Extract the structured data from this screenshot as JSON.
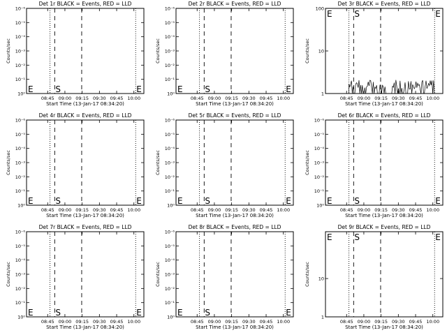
{
  "chart_data": [
    {
      "type": "line",
      "title": "Det 1r BLACK = Events, RED = LLD",
      "xlabel": "Start Time (13-Jan-17 08:34:20)",
      "ylabel": "Counts/sec",
      "scale": "log",
      "xticks": [
        "08:45",
        "09:00",
        "09:15",
        "09:30",
        "09:45",
        "10:00"
      ],
      "yticks": [
        "10⁰",
        "10⁻¹",
        "10⁻²",
        "10⁻³",
        "10⁻⁴",
        "10⁻⁵",
        "10⁻⁶"
      ],
      "markers": {
        "start": "S",
        "end": "E"
      },
      "x_marks": [
        {
          "x": 0.2,
          "style": "dotted"
        },
        {
          "x": 0.24,
          "style": "dashed"
        },
        {
          "x": 0.47,
          "style": "dashed"
        },
        {
          "x": 0.93,
          "style": "dotted"
        }
      ],
      "series": []
    },
    {
      "type": "line",
      "title": "Det 2r BLACK = Events, RED = LLD",
      "xlabel": "Start Time (13-Jan-17 08:34:20)",
      "ylabel": "Counts/sec",
      "scale": "log",
      "xticks": [
        "08:45",
        "09:00",
        "09:15",
        "09:30",
        "09:45",
        "10:00"
      ],
      "yticks": [
        "10⁰",
        "10⁻¹",
        "10⁻²",
        "10⁻³",
        "10⁻⁴",
        "10⁻⁵",
        "10⁻⁶"
      ],
      "markers": {
        "start": "S",
        "end": "E"
      },
      "x_marks": [
        {
          "x": 0.2,
          "style": "dotted"
        },
        {
          "x": 0.24,
          "style": "dashed"
        },
        {
          "x": 0.47,
          "style": "dashed"
        },
        {
          "x": 0.93,
          "style": "dotted"
        }
      ],
      "series": []
    },
    {
      "type": "line",
      "title": "Det 3r BLACK = Events, RED = LLD",
      "xlabel": "Start Time (13-Jan-17 08:34:20)",
      "ylabel": "Counts/sec",
      "scale": "log",
      "xticks": [
        "08:45",
        "09:00",
        "09:15",
        "09:30",
        "09:45",
        "10:00"
      ],
      "yticks": [
        "1",
        "10",
        "100"
      ],
      "markers": {
        "start": "S",
        "end": "E"
      },
      "x_marks": [
        {
          "x": 0.2,
          "style": "dotted"
        },
        {
          "x": 0.24,
          "style": "dashed"
        },
        {
          "x": 0.47,
          "style": "dashed"
        },
        {
          "x": 0.93,
          "style": "dotted"
        }
      ],
      "series": [
        {
          "color": "#000000",
          "x_range": [
            0.2,
            0.93
          ],
          "y_range": [
            1,
            2
          ]
        }
      ]
    },
    {
      "type": "line",
      "title": "Det 4r BLACK = Events, RED = LLD",
      "xlabel": "Start Time (13-Jan-17 08:34:20)",
      "ylabel": "Counts/sec",
      "scale": "log",
      "xticks": [
        "08:45",
        "09:00",
        "09:15",
        "09:30",
        "09:45",
        "10:00"
      ],
      "yticks": [
        "10⁰",
        "10⁻¹",
        "10⁻²",
        "10⁻³",
        "10⁻⁴",
        "10⁻⁵",
        "10⁻⁶"
      ],
      "markers": {
        "start": "S",
        "end": "E"
      },
      "x_marks": [
        {
          "x": 0.2,
          "style": "dotted"
        },
        {
          "x": 0.24,
          "style": "dashed"
        },
        {
          "x": 0.47,
          "style": "dashed"
        },
        {
          "x": 0.93,
          "style": "dotted"
        }
      ],
      "series": []
    },
    {
      "type": "line",
      "title": "Det 5r BLACK = Events, RED = LLD",
      "xlabel": "Start Time (13-Jan-17 08:34:20)",
      "ylabel": "Counts/sec",
      "scale": "log",
      "xticks": [
        "08:45",
        "09:00",
        "09:15",
        "09:30",
        "09:45",
        "10:00"
      ],
      "yticks": [
        "10⁰",
        "10⁻¹",
        "10⁻²",
        "10⁻³",
        "10⁻⁴",
        "10⁻⁵",
        "10⁻⁶"
      ],
      "markers": {
        "start": "S",
        "end": "E"
      },
      "x_marks": [
        {
          "x": 0.2,
          "style": "dotted"
        },
        {
          "x": 0.24,
          "style": "dashed"
        },
        {
          "x": 0.47,
          "style": "dashed"
        },
        {
          "x": 0.93,
          "style": "dotted"
        }
      ],
      "series": []
    },
    {
      "type": "line",
      "title": "Det 6r BLACK = Events, RED = LLD",
      "xlabel": "Start Time (13-Jan-17 08:34:20)",
      "ylabel": "Counts/sec",
      "scale": "log",
      "xticks": [
        "08:45",
        "09:00",
        "09:15",
        "09:30",
        "09:45",
        "10:00"
      ],
      "yticks": [
        "10⁰",
        "10⁻¹",
        "10⁻²",
        "10⁻³",
        "10⁻⁴",
        "10⁻⁵",
        "10⁻⁶"
      ],
      "markers": {
        "start": "S",
        "end": "E"
      },
      "x_marks": [
        {
          "x": 0.2,
          "style": "dotted"
        },
        {
          "x": 0.24,
          "style": "dashed"
        },
        {
          "x": 0.47,
          "style": "dashed"
        },
        {
          "x": 0.93,
          "style": "dotted"
        }
      ],
      "series": []
    },
    {
      "type": "line",
      "title": "Det 7r BLACK = Events, RED = LLD",
      "xlabel": "Start Time (13-Jan-17 08:34:20)",
      "ylabel": "Counts/sec",
      "scale": "log",
      "xticks": [
        "08:45",
        "09:00",
        "09:15",
        "09:30",
        "09:45",
        "10:00"
      ],
      "yticks": [
        "10⁰",
        "10⁻¹",
        "10⁻²",
        "10⁻³",
        "10⁻⁴",
        "10⁻⁵",
        "10⁻⁶"
      ],
      "markers": {
        "start": "S",
        "end": "E"
      },
      "x_marks": [
        {
          "x": 0.2,
          "style": "dotted"
        },
        {
          "x": 0.24,
          "style": "dashed"
        },
        {
          "x": 0.47,
          "style": "dashed"
        },
        {
          "x": 0.93,
          "style": "dotted"
        }
      ],
      "series": []
    },
    {
      "type": "line",
      "title": "Det 8r BLACK = Events, RED = LLD",
      "xlabel": "Start Time (13-Jan-17 08:34:20)",
      "ylabel": "Counts/sec",
      "scale": "log",
      "xticks": [
        "08:45",
        "09:00",
        "09:15",
        "09:30",
        "09:45",
        "10:00"
      ],
      "yticks": [
        "10⁰",
        "10⁻¹",
        "10⁻²",
        "10⁻³",
        "10⁻⁴",
        "10⁻⁵",
        "10⁻⁶"
      ],
      "markers": {
        "start": "S",
        "end": "E"
      },
      "x_marks": [
        {
          "x": 0.2,
          "style": "dotted"
        },
        {
          "x": 0.24,
          "style": "dashed"
        },
        {
          "x": 0.47,
          "style": "dashed"
        },
        {
          "x": 0.93,
          "style": "dotted"
        }
      ],
      "series": []
    },
    {
      "type": "line",
      "title": "Det 9r BLACK = Events, RED = LLD",
      "xlabel": "Start Time (13-Jan-17 08:34:20)",
      "ylabel": "Counts/sec",
      "scale": "log",
      "xticks": [
        "08:45",
        "09:00",
        "09:15",
        "09:30",
        "09:45",
        "10:00"
      ],
      "yticks": [
        "1",
        "10"
      ],
      "markers": {
        "start": "S",
        "end": "E"
      },
      "x_marks": [
        {
          "x": 0.2,
          "style": "dotted"
        },
        {
          "x": 0.24,
          "style": "dashed"
        },
        {
          "x": 0.47,
          "style": "dashed"
        },
        {
          "x": 0.93,
          "style": "dotted"
        }
      ],
      "series": []
    }
  ]
}
